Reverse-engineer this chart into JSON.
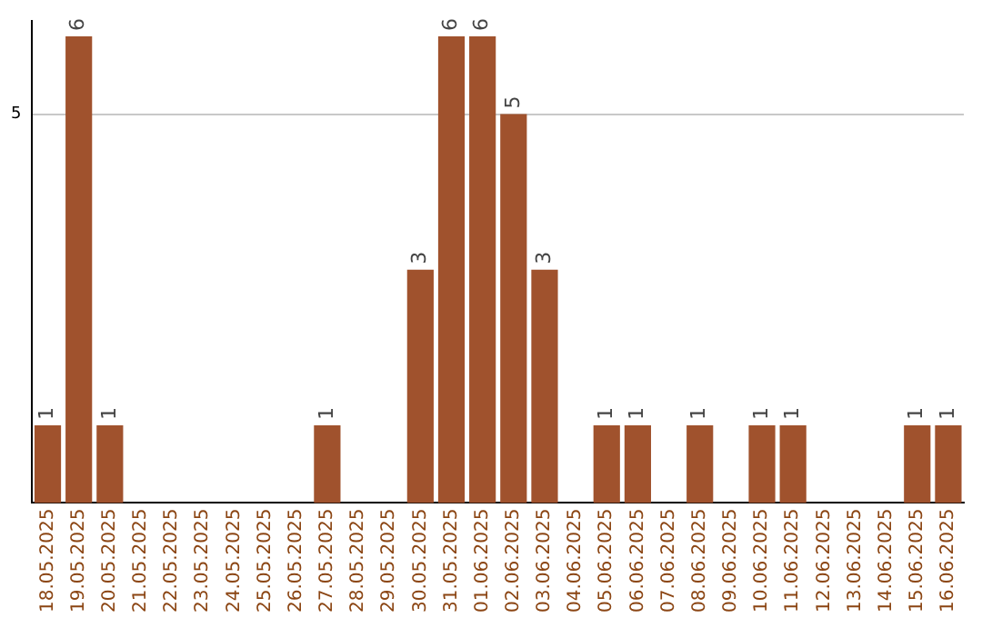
{
  "chart_data": {
    "type": "bar",
    "categories": [
      "18.05.2025",
      "19.05.2025",
      "20.05.2025",
      "21.05.2025",
      "22.05.2025",
      "23.05.2025",
      "24.05.2025",
      "25.05.2025",
      "26.05.2025",
      "27.05.2025",
      "28.05.2025",
      "29.05.2025",
      "30.05.2025",
      "31.05.2025",
      "01.06.2025",
      "02.06.2025",
      "03.06.2025",
      "04.06.2025",
      "05.06.2025",
      "06.06.2025",
      "07.06.2025",
      "08.06.2025",
      "09.06.2025",
      "10.06.2025",
      "11.06.2025",
      "12.06.2025",
      "13.06.2025",
      "14.06.2025",
      "15.06.2025",
      "16.06.2025"
    ],
    "values": [
      1,
      6,
      1,
      0,
      0,
      0,
      0,
      0,
      0,
      1,
      0,
      0,
      3,
      6,
      6,
      5,
      3,
      0,
      1,
      1,
      0,
      1,
      0,
      1,
      1,
      0,
      0,
      0,
      1,
      1
    ],
    "value_labels": [
      "1",
      "6",
      "1",
      null,
      null,
      null,
      null,
      null,
      null,
      "1",
      null,
      null,
      "3",
      "6",
      "6",
      "5",
      "3",
      null,
      "1",
      "1",
      null,
      "1",
      null,
      "1",
      "1",
      null,
      null,
      null,
      "1",
      "1"
    ],
    "color": "#a0522d",
    "ylim": [
      0,
      6.2
    ],
    "yticks": [
      5
    ],
    "grid": "y",
    "legend": false
  }
}
